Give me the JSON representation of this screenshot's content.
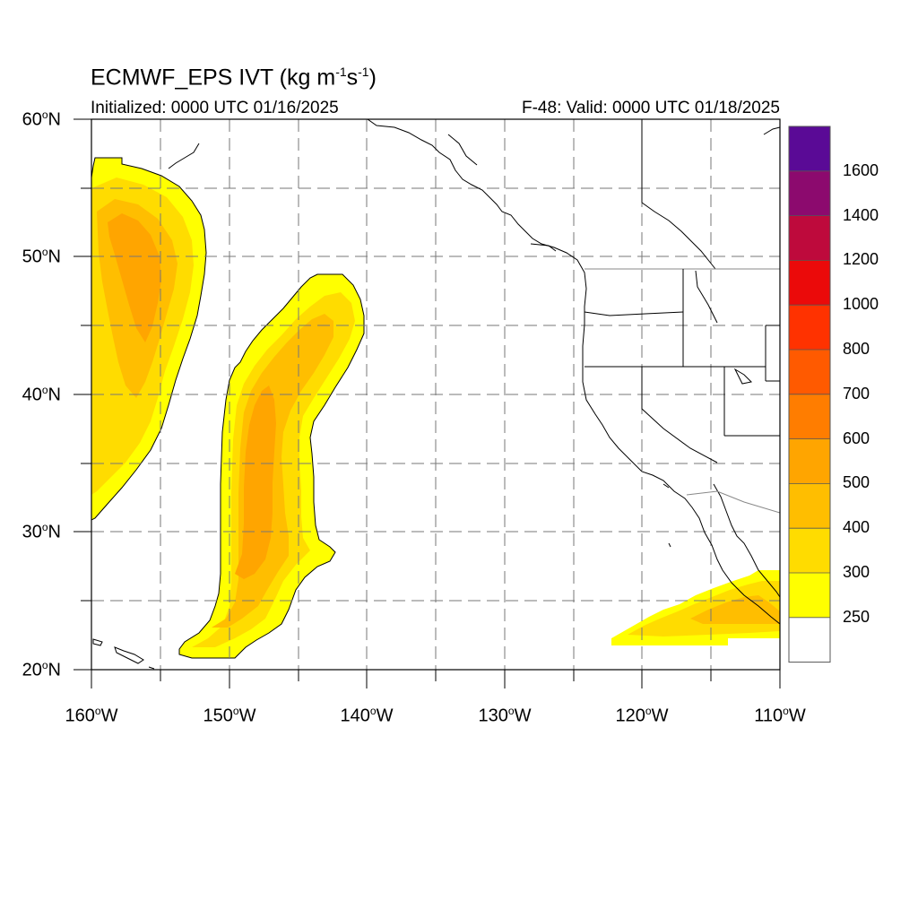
{
  "title": {
    "main": "ECMWF_EPS IVT (kg m",
    "exp1": "-1",
    "mid": "s",
    "exp2": "-1",
    "close": ")"
  },
  "subtitle": {
    "left": "Initialized: 0000 UTC 01/16/2025",
    "right": "F-48: Valid: 0000 UTC 01/18/2025"
  },
  "axes": {
    "lat_labels": [
      {
        "value": "60",
        "deg": "o",
        "hemi": "N"
      },
      {
        "value": "50",
        "deg": "o",
        "hemi": "N"
      },
      {
        "value": "40",
        "deg": "o",
        "hemi": "N"
      },
      {
        "value": "30",
        "deg": "o",
        "hemi": "N"
      },
      {
        "value": "20",
        "deg": "o",
        "hemi": "N"
      }
    ],
    "lon_labels": [
      {
        "value": "160",
        "deg": "o",
        "hemi": "W"
      },
      {
        "value": "150",
        "deg": "o",
        "hemi": "W"
      },
      {
        "value": "140",
        "deg": "o",
        "hemi": "W"
      },
      {
        "value": "130",
        "deg": "o",
        "hemi": "W"
      },
      {
        "value": "120",
        "deg": "o",
        "hemi": "W"
      },
      {
        "value": "110",
        "deg": "o",
        "hemi": "W"
      }
    ],
    "lat_range": [
      20,
      60
    ],
    "lon_range": [
      -160,
      -110
    ],
    "grid": "dashed every 5 degrees"
  },
  "colorbar": {
    "labels": [
      "1600",
      "1400",
      "1200",
      "1000",
      "800",
      "700",
      "600",
      "500",
      "400",
      "300",
      "250"
    ],
    "colors": [
      "#5a0a96",
      "#8c0a6e",
      "#be0a3c",
      "#eb0a0a",
      "#ff3200",
      "#ff5a00",
      "#ff7d00",
      "#ffa500",
      "#ffbe00",
      "#ffdc00",
      "#ffff00",
      "#ffffff"
    ]
  },
  "chart_data": {
    "type": "heatmap",
    "variable": "IVT",
    "levels": [
      250,
      300,
      400,
      500,
      600,
      700,
      800,
      1000,
      1200,
      1400,
      1600
    ],
    "xlim": [
      -160,
      -110
    ],
    "ylim": [
      20,
      60
    ],
    "features": [
      {
        "region": "northwest plume",
        "lat_range": [
          31,
          57
        ],
        "lon_range": [
          -160,
          -152
        ],
        "max_level": 500
      },
      {
        "region": "central plume",
        "lat_range": [
          21,
          49
        ],
        "lon_range": [
          -153,
          -140
        ],
        "max_level": 500
      },
      {
        "region": "southeast plume",
        "lat_range": [
          22,
          27
        ],
        "lon_range": [
          -122,
          -110
        ],
        "max_level": 400
      }
    ]
  }
}
